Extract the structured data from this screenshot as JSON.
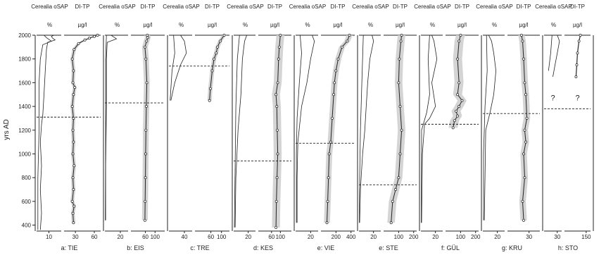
{
  "chart_data": {
    "type": "line",
    "ylabel": "yrs AD",
    "ylim": [
      350,
      2000
    ],
    "yticks": [
      400,
      600,
      800,
      1000,
      1200,
      1400,
      1600,
      1800,
      2000
    ],
    "band_color": "#d4d4d4",
    "line_color": "#222222",
    "panels": [
      {
        "label": "a: TIE",
        "cer_header": "Cerealia oSAP",
        "cer_unit": "%",
        "cer_xlim": [
          0,
          20
        ],
        "cer_ticks": [
          10
        ],
        "tp_header": "DI-TP",
        "tp_unit": "µg/l",
        "tp_xlim": [
          12,
          70
        ],
        "tp_ticks": [
          30,
          60
        ],
        "boundary": 1310,
        "cereal_a": [
          [
            3,
            360
          ],
          [
            4,
            500
          ],
          [
            3,
            700
          ],
          [
            4,
            900
          ],
          [
            3,
            1100
          ],
          [
            4,
            1250
          ],
          [
            5,
            1330
          ],
          [
            6,
            1500
          ],
          [
            7,
            1700
          ],
          [
            8,
            1880
          ],
          [
            9,
            1940
          ],
          [
            15,
            1960
          ],
          [
            13,
            1975
          ],
          [
            12,
            1990
          ],
          [
            14,
            2000
          ]
        ],
        "cereal_b": [
          [
            1,
            360
          ],
          [
            1,
            800
          ],
          [
            2,
            1200
          ],
          [
            2,
            1600
          ],
          [
            3,
            1800
          ],
          [
            5,
            1920
          ],
          [
            12,
            1950
          ],
          [
            8,
            1980
          ],
          [
            6,
            2000
          ]
        ],
        "tp": [
          [
            27,
            420
          ],
          [
            26,
            500
          ],
          [
            28,
            560
          ],
          [
            25,
            600
          ],
          [
            27,
            700
          ],
          [
            26,
            800
          ],
          [
            28,
            900
          ],
          [
            26,
            1000
          ],
          [
            27,
            1100
          ],
          [
            26,
            1200
          ],
          [
            27,
            1300
          ],
          [
            25,
            1400
          ],
          [
            27,
            1500
          ],
          [
            29,
            1560
          ],
          [
            26,
            1600
          ],
          [
            27,
            1700
          ],
          [
            25,
            1800
          ],
          [
            28,
            1880
          ],
          [
            35,
            1930
          ],
          [
            45,
            1960
          ],
          [
            52,
            1975
          ],
          [
            60,
            1990
          ],
          [
            65,
            2000
          ]
        ],
        "tp_band": 3
      },
      {
        "label": "b: EIS",
        "cer_header": "Cerealia oSAP",
        "cer_unit": "%",
        "cer_xlim": [
          0,
          30
        ],
        "cer_ticks": [
          20
        ],
        "tp_header": "DI-TP",
        "tp_unit": "µg/l",
        "tp_xlim": [
          0,
          140
        ],
        "tp_ticks": [
          60,
          100
        ],
        "boundary": 1430,
        "cereal_a": [
          [
            1,
            440
          ],
          [
            1,
            900
          ],
          [
            2,
            1400
          ],
          [
            2,
            1800
          ],
          [
            3,
            1940
          ],
          [
            15,
            1970
          ],
          [
            8,
            2000
          ]
        ],
        "cereal_b": [
          [
            0.5,
            440
          ],
          [
            1,
            1200
          ],
          [
            1,
            1800
          ],
          [
            2,
            2000
          ]
        ],
        "tp": [
          [
            58,
            440
          ],
          [
            59,
            600
          ],
          [
            60,
            800
          ],
          [
            61,
            1000
          ],
          [
            62,
            1200
          ],
          [
            64,
            1400
          ],
          [
            66,
            1600
          ],
          [
            62,
            1800
          ],
          [
            58,
            1900
          ],
          [
            65,
            1950
          ],
          [
            70,
            1980
          ],
          [
            68,
            2000
          ]
        ],
        "tp_band": 12
      },
      {
        "label": "c: TRE",
        "cer_header": "Cerealia oSAP",
        "cer_unit": "%",
        "cer_xlim": [
          0,
          60
        ],
        "cer_ticks": [
          40
        ],
        "tp_header": "DI-TP",
        "tp_unit": "µg/l",
        "tp_xlim": [
          0,
          130
        ],
        "tp_ticks": [
          60,
          100
        ],
        "boundary": 1740,
        "cereal_a": [
          [
            5,
            1450
          ],
          [
            15,
            1600
          ],
          [
            30,
            1750
          ],
          [
            45,
            1850
          ],
          [
            40,
            1950
          ],
          [
            30,
            2000
          ]
        ],
        "cereal_b": [
          [
            3,
            1450
          ],
          [
            8,
            1700
          ],
          [
            15,
            1850
          ],
          [
            12,
            2000
          ]
        ],
        "tp": [
          [
            55,
            1450
          ],
          [
            58,
            1550
          ],
          [
            65,
            1700
          ],
          [
            72,
            1800
          ],
          [
            80,
            1850
          ],
          [
            85,
            1900
          ],
          [
            95,
            1950
          ],
          [
            110,
            2000
          ]
        ],
        "tp_band": 8
      },
      {
        "label": "d: KES",
        "cer_header": "Cerealia oSAP",
        "cer_unit": "%",
        "cer_xlim": [
          0,
          30
        ],
        "cer_ticks": [
          20
        ],
        "tp_header": "DI-TP",
        "tp_unit": "µg/l",
        "tp_xlim": [
          0,
          150
        ],
        "tp_ticks": [
          60,
          100
        ],
        "boundary": 940,
        "cereal_a": [
          [
            2,
            380
          ],
          [
            3,
            800
          ],
          [
            6,
            1200
          ],
          [
            10,
            1500
          ],
          [
            12,
            1800
          ],
          [
            15,
            1950
          ],
          [
            18,
            2000
          ]
        ],
        "cereal_b": [
          [
            1,
            380
          ],
          [
            2,
            900
          ],
          [
            3,
            1400
          ],
          [
            5,
            1800
          ],
          [
            8,
            2000
          ]
        ],
        "tp": [
          [
            80,
            380
          ],
          [
            82,
            600
          ],
          [
            85,
            800
          ],
          [
            88,
            1000
          ],
          [
            86,
            1200
          ],
          [
            84,
            1400
          ],
          [
            80,
            1500
          ],
          [
            88,
            1600
          ],
          [
            92,
            1800
          ],
          [
            95,
            1900
          ],
          [
            100,
            2000
          ]
        ],
        "tp_band": 18
      },
      {
        "label": "e: VIE",
        "cer_header": "Cerealia oSAP",
        "cer_unit": "%",
        "cer_xlim": [
          0,
          30
        ],
        "cer_ticks": [
          20
        ],
        "tp_header": "DI-TP",
        "tp_unit": "µg/l",
        "tp_xlim": [
          0,
          450
        ],
        "tp_ticks": [
          200,
          400
        ],
        "boundary": 1090,
        "cereal_a": [
          [
            2,
            420
          ],
          [
            2,
            800
          ],
          [
            3,
            1100
          ],
          [
            8,
            1400
          ],
          [
            15,
            1600
          ],
          [
            20,
            1800
          ],
          [
            25,
            1950
          ],
          [
            22,
            2000
          ]
        ],
        "cereal_b": [
          [
            1,
            420
          ],
          [
            1,
            1000
          ],
          [
            2,
            1300
          ],
          [
            5,
            1600
          ],
          [
            8,
            1850
          ],
          [
            6,
            2000
          ]
        ],
        "tp": [
          [
            80,
            420
          ],
          [
            90,
            600
          ],
          [
            100,
            800
          ],
          [
            110,
            1000
          ],
          [
            130,
            1100
          ],
          [
            150,
            1300
          ],
          [
            170,
            1500
          ],
          [
            180,
            1600
          ],
          [
            200,
            1700
          ],
          [
            230,
            1800
          ],
          [
            280,
            1900
          ],
          [
            350,
            1950
          ],
          [
            380,
            2000
          ]
        ],
        "tp_band": 40
      },
      {
        "label": "e: STE",
        "cer_header": "Cerealia oSAP",
        "cer_unit": "%",
        "cer_xlim": [
          0,
          30
        ],
        "cer_ticks": [
          20
        ],
        "tp_header": "DI-TP",
        "tp_unit": "µg/l",
        "tp_xlim": [
          0,
          220
        ],
        "tp_ticks": [
          100,
          200
        ],
        "boundary": 740,
        "cereal_a": [
          [
            1,
            420
          ],
          [
            2,
            700
          ],
          [
            3,
            800
          ],
          [
            5,
            1000
          ],
          [
            8,
            1200
          ],
          [
            10,
            1400
          ],
          [
            12,
            1600
          ],
          [
            15,
            1800
          ],
          [
            20,
            1950
          ],
          [
            18,
            2000
          ]
        ],
        "cereal_b": [
          [
            0.5,
            420
          ],
          [
            1,
            800
          ],
          [
            2,
            1200
          ],
          [
            4,
            1600
          ],
          [
            6,
            2000
          ]
        ],
        "tp": [
          [
            50,
            420
          ],
          [
            60,
            600
          ],
          [
            80,
            700
          ],
          [
            100,
            800
          ],
          [
            110,
            1000
          ],
          [
            120,
            1200
          ],
          [
            110,
            1400
          ],
          [
            100,
            1600
          ],
          [
            105,
            1800
          ],
          [
            115,
            1950
          ],
          [
            120,
            2000
          ]
        ],
        "tp_band": 25
      },
      {
        "label": "f: GÜL",
        "cer_header": "Cerealia oSAP",
        "cer_unit": "%",
        "cer_xlim": [
          0,
          30
        ],
        "cer_ticks": [
          20
        ],
        "tp_header": "DI-TP",
        "tp_unit": "µg/l",
        "tp_xlim": [
          0,
          220
        ],
        "tp_ticks": [
          100,
          200
        ],
        "boundary": 1250,
        "cereal_a": [
          [
            1,
            420
          ],
          [
            2,
            1000
          ],
          [
            5,
            1250
          ],
          [
            12,
            1300
          ],
          [
            20,
            1400
          ],
          [
            15,
            1600
          ],
          [
            22,
            1800
          ],
          [
            18,
            1950
          ],
          [
            15,
            2000
          ]
        ],
        "cereal_b": [
          [
            0.5,
            420
          ],
          [
            1,
            1200
          ],
          [
            8,
            1350
          ],
          [
            12,
            1500
          ],
          [
            10,
            1800
          ],
          [
            12,
            2000
          ]
        ],
        "tp": [
          [
            50,
            1220
          ],
          [
            60,
            1280
          ],
          [
            80,
            1320
          ],
          [
            70,
            1360
          ],
          [
            90,
            1400
          ],
          [
            110,
            1450
          ],
          [
            80,
            1500
          ],
          [
            90,
            1600
          ],
          [
            80,
            1800
          ],
          [
            90,
            1950
          ],
          [
            100,
            2000
          ]
        ],
        "tp_band": 30
      },
      {
        "label": "g: KRU",
        "cer_header": "Cerealia oSAP",
        "cer_unit": "%",
        "cer_xlim": [
          0,
          30
        ],
        "cer_ticks": [
          20
        ],
        "tp_header": "DI-TP",
        "tp_unit": "µg/l",
        "tp_xlim": [
          10,
          40
        ],
        "tp_ticks": [
          30
        ],
        "boundary": 1340,
        "cereal_a": [
          [
            2,
            440
          ],
          [
            3,
            800
          ],
          [
            4,
            1200
          ],
          [
            10,
            1350
          ],
          [
            15,
            1500
          ],
          [
            18,
            1700
          ],
          [
            15,
            1850
          ],
          [
            12,
            1950
          ],
          [
            8,
            2000
          ]
        ],
        "cereal_b": [
          [
            1,
            440
          ],
          [
            1,
            1000
          ],
          [
            3,
            1400
          ],
          [
            6,
            1700
          ],
          [
            5,
            2000
          ]
        ],
        "tp": [
          [
            25,
            440
          ],
          [
            24,
            600
          ],
          [
            26,
            800
          ],
          [
            25,
            1000
          ],
          [
            27,
            1100
          ],
          [
            26,
            1200
          ],
          [
            28,
            1300
          ],
          [
            27,
            1500
          ],
          [
            26,
            1600
          ],
          [
            25,
            1800
          ],
          [
            24,
            1950
          ],
          [
            23,
            2000
          ]
        ],
        "tp_band": 3
      },
      {
        "label": "h: STO",
        "cer_header": "Cerealia oSAP",
        "cer_unit": "%",
        "cer_xlim": [
          0,
          40
        ],
        "cer_ticks": [
          30
        ],
        "tp_header": "DI-TP",
        "tp_unit": "µg/l",
        "tp_xlim": [
          0,
          180
        ],
        "tp_ticks": [
          150
        ],
        "boundary": 1380,
        "unknown_mark": "?",
        "cereal_a": [
          [
            20,
            1650
          ],
          [
            25,
            1750
          ],
          [
            30,
            1850
          ],
          [
            35,
            1950
          ],
          [
            30,
            2000
          ]
        ],
        "cereal_b": [
          [
            10,
            1700
          ],
          [
            15,
            1850
          ],
          [
            18,
            2000
          ]
        ],
        "tp": [
          [
            80,
            1650
          ],
          [
            85,
            1750
          ],
          [
            90,
            1850
          ],
          [
            100,
            1950
          ],
          [
            110,
            2000
          ]
        ],
        "tp_band": 5
      }
    ]
  }
}
